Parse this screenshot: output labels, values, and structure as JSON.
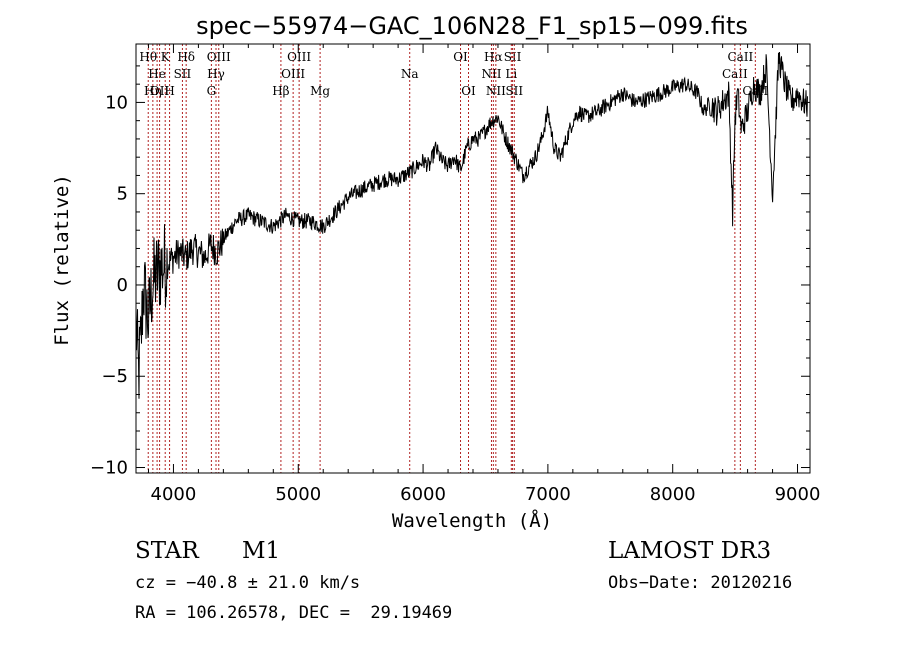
{
  "chart_data": {
    "type": "line",
    "title": "spec−55974−GAC_106N28_F1_sp15−099.fits",
    "xlabel": "Wavelength (Å)",
    "ylabel": "Flux (relative)",
    "xlim": [
      3700,
      9100
    ],
    "ylim": [
      -10.3,
      13.2
    ],
    "xticks": [
      4000,
      5000,
      6000,
      7000,
      8000,
      9000
    ],
    "xtick_labels": [
      "4000",
      "5000",
      "6000",
      "7000",
      "8000",
      "9000"
    ],
    "yticks": [
      -10,
      -5,
      0,
      5,
      10
    ],
    "ytick_labels": [
      "−10",
      "−5",
      "0",
      "5",
      "10"
    ],
    "spectrum": {
      "x": [
        3700,
        3720,
        3740,
        3760,
        3780,
        3800,
        3830,
        3860,
        3900,
        3950,
        4000,
        4050,
        4100,
        4150,
        4200,
        4250,
        4300,
        4350,
        4400,
        4450,
        4500,
        4600,
        4700,
        4800,
        4900,
        5000,
        5100,
        5200,
        5300,
        5400,
        5500,
        5600,
        5700,
        5800,
        5900,
        6000,
        6050,
        6100,
        6150,
        6200,
        6250,
        6300,
        6350,
        6400,
        6450,
        6500,
        6550,
        6600,
        6650,
        6700,
        6750,
        6800,
        6850,
        6900,
        6950,
        7000,
        7050,
        7100,
        7150,
        7200,
        7250,
        7300,
        7400,
        7500,
        7600,
        7700,
        7800,
        7900,
        8000,
        8100,
        8200,
        8250,
        8300,
        8350,
        8400,
        8450,
        8480,
        8500,
        8520,
        8550,
        8600,
        8650,
        8700,
        8750,
        8800,
        8850,
        8900,
        8950,
        9000,
        9050,
        9080
      ],
      "y": [
        -2,
        -5,
        -3,
        0,
        -1,
        -2,
        0,
        0.5,
        1,
        1.2,
        1.5,
        1.8,
        1.5,
        2,
        1.8,
        1.5,
        2.2,
        1.8,
        2.5,
        3,
        3.5,
        3.8,
        3.5,
        3.2,
        3.8,
        3.5,
        3.5,
        3.2,
        4,
        4.8,
        5.2,
        5.5,
        5.8,
        5.8,
        6.2,
        6.8,
        6.5,
        7.5,
        6.8,
        6.5,
        7,
        6.3,
        7.5,
        8,
        8,
        8.5,
        9,
        9.2,
        8.2,
        7.5,
        6.8,
        6,
        6.5,
        7,
        8,
        9.5,
        7.5,
        7,
        8,
        9,
        9.5,
        9.2,
        9.5,
        10,
        10.5,
        10,
        10.2,
        10.5,
        10.8,
        11,
        10.5,
        9.5,
        10,
        9.5,
        10,
        10.5,
        4,
        9.2,
        10.5,
        8.5,
        9.5,
        11,
        10.5,
        12,
        5,
        12.5,
        11,
        10,
        10.5,
        10,
        9.8
      ]
    },
    "line_markers": [
      {
        "wavelength": 3798,
        "label": "Hθ",
        "row": 0
      },
      {
        "wavelength": 3835,
        "label": "Hη",
        "row": 2
      },
      {
        "wavelength": 3869,
        "label": "He",
        "row": 1
      },
      {
        "wavelength": 3889,
        "label": "OII",
        "row": 2
      },
      {
        "wavelength": 3934,
        "label": "K",
        "row": 0
      },
      {
        "wavelength": 3969,
        "label": "H",
        "row": 2
      },
      {
        "wavelength": 4072,
        "label": "SII",
        "row": 1
      },
      {
        "wavelength": 4102,
        "label": "Hδ",
        "row": 0
      },
      {
        "wavelength": 4304,
        "label": "G",
        "row": 2
      },
      {
        "wavelength": 4341,
        "label": "Hγ",
        "row": 1
      },
      {
        "wavelength": 4363,
        "label": "OIII",
        "row": 0
      },
      {
        "wavelength": 4861,
        "label": "Hβ",
        "row": 2
      },
      {
        "wavelength": 4959,
        "label": "OIII",
        "row": 1
      },
      {
        "wavelength": 5007,
        "label": "OIII",
        "row": 0
      },
      {
        "wavelength": 5175,
        "label": "Mg",
        "row": 2
      },
      {
        "wavelength": 5893,
        "label": "Na",
        "row": 1
      },
      {
        "wavelength": 6300,
        "label": "OI",
        "row": 0
      },
      {
        "wavelength": 6364,
        "label": "OI",
        "row": 2
      },
      {
        "wavelength": 6548,
        "label": "NII",
        "row": 1
      },
      {
        "wavelength": 6563,
        "label": "Hα",
        "row": 0
      },
      {
        "wavelength": 6583,
        "label": "NII",
        "row": 2
      },
      {
        "wavelength": 6707,
        "label": "Li",
        "row": 1
      },
      {
        "wavelength": 6717,
        "label": "SII",
        "row": 0
      },
      {
        "wavelength": 6731,
        "label": "SII",
        "row": 2
      },
      {
        "wavelength": 8498,
        "label": "CaII",
        "row": 1
      },
      {
        "wavelength": 8542,
        "label": "CaII",
        "row": 0
      },
      {
        "wavelength": 8662,
        "label": "CaII",
        "row": 2
      }
    ]
  },
  "info": {
    "object_class": "STAR",
    "subclass": "M1",
    "survey": "LAMOST DR3",
    "cz": "cz = −40.8 ± 21.0 km/s",
    "obs_date": "Obs−Date: 20120216",
    "radec": "RA = 106.26578, DEC =  29.19469"
  },
  "colors": {
    "axis": "#000000",
    "spectrum": "#000000",
    "marker_line": "#b22222"
  }
}
